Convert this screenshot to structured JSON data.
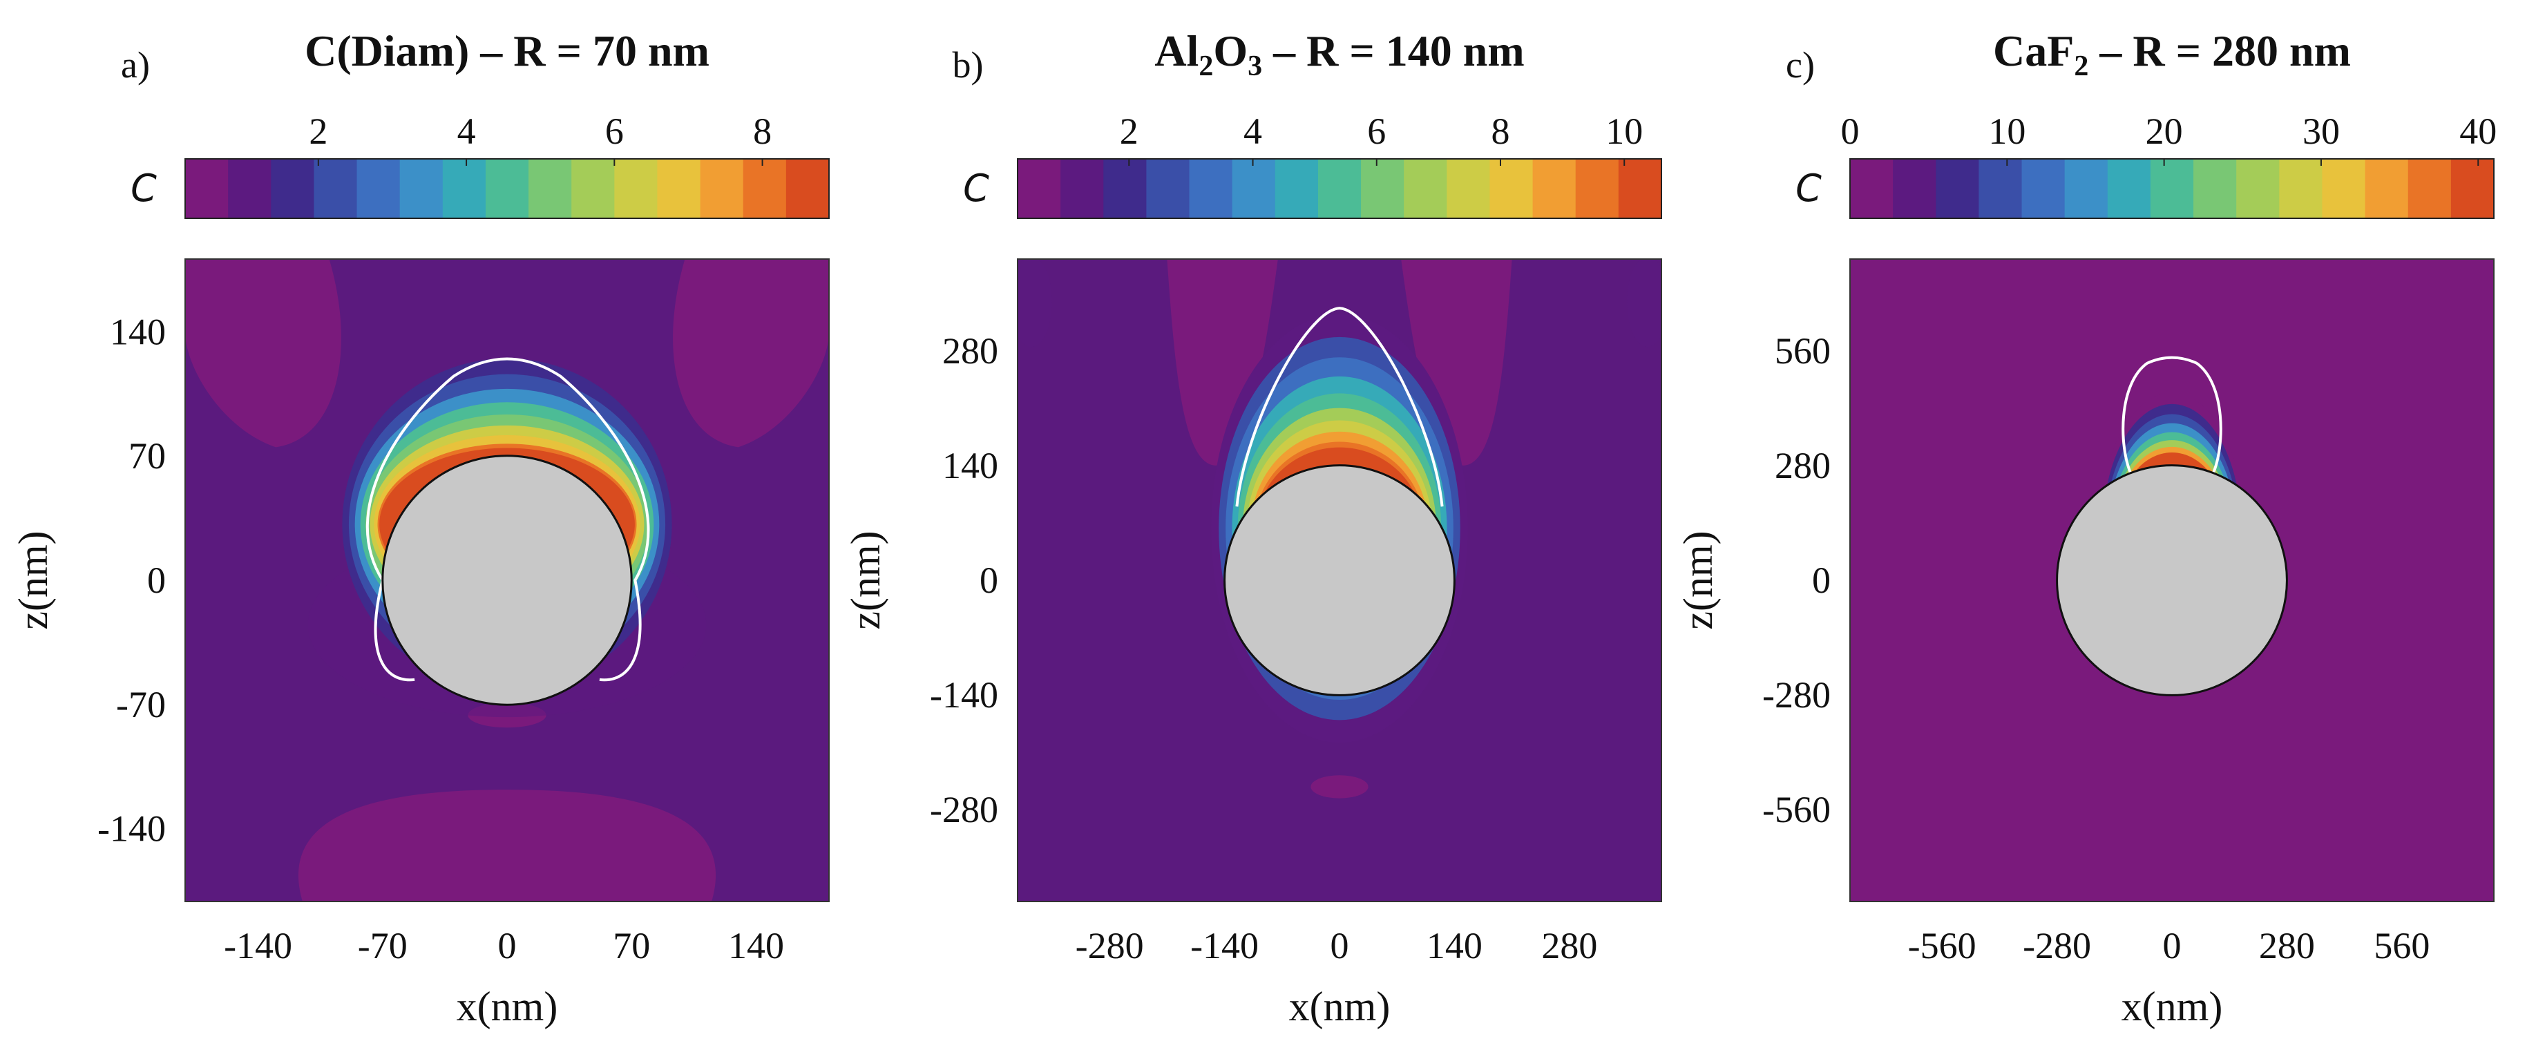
{
  "chart_data": [
    {
      "type": "heatmap",
      "panel_label": "a)",
      "title_parts": [
        "C(Diam) – R = 70 nm"
      ],
      "colorbar_label": "C",
      "colorbar_ticks": [
        "2",
        "4",
        "6",
        "8"
      ],
      "colorbar_range": [
        0.2,
        8.9
      ],
      "radius_nm": 70,
      "xlabel": "x(nm)",
      "ylabel": "z(nm)",
      "xlim": [
        -181,
        181
      ],
      "ylim": [
        -181,
        181
      ],
      "xticks": [
        "-140",
        "-70",
        "0",
        "70",
        "140"
      ],
      "yticks": [
        "140",
        "70",
        "0",
        "-70",
        "-140"
      ],
      "hotspot_peak": 8.9
    },
    {
      "type": "heatmap",
      "panel_label": "b)",
      "title_parts": [
        "Al",
        "2",
        "O",
        "3",
        " – R = 140 nm"
      ],
      "colorbar_label": "C",
      "colorbar_ticks": [
        "2",
        "4",
        "6",
        "8",
        "10"
      ],
      "colorbar_range": [
        0.2,
        10.6
      ],
      "radius_nm": 140,
      "xlabel": "x(nm)",
      "ylabel": "z(nm)",
      "xlim": [
        -392,
        392
      ],
      "ylim": [
        -392,
        392
      ],
      "xticks": [
        "-280",
        "-140",
        "0",
        "140",
        "280"
      ],
      "yticks": [
        "280",
        "140",
        "0",
        "-140",
        "-280"
      ],
      "hotspot_peak": 10.6
    },
    {
      "type": "heatmap",
      "panel_label": "c)",
      "title_parts": [
        "CaF",
        "2",
        " – R = 280 nm"
      ],
      "colorbar_label": "C",
      "colorbar_ticks": [
        "0",
        "10",
        "20",
        "30",
        "40"
      ],
      "colorbar_range": [
        0,
        41
      ],
      "radius_nm": 280,
      "xlabel": "x(nm)",
      "ylabel": "z(nm)",
      "xlim": [
        -784,
        784
      ],
      "ylim": [
        -784,
        784
      ],
      "xticks": [
        "-560",
        "-280",
        "0",
        "280",
        "560"
      ],
      "yticks": [
        "560",
        "280",
        "0",
        "-280",
        "-560"
      ],
      "hotspot_peak": 41
    }
  ],
  "colors": {
    "colormap": [
      "#7a1a7c",
      "#5c1a80",
      "#3f2b8c",
      "#3a4fa8",
      "#3d6fc0",
      "#3c90c8",
      "#36aab8",
      "#4cbc96",
      "#79c774",
      "#a4cc58",
      "#cdcc46",
      "#e8c23c",
      "#f19e33",
      "#e97426",
      "#d94c1f"
    ],
    "background": "#5b1a7e",
    "low_lobe": "#7a1a7c",
    "sphere": "#c8c8c8",
    "contour": "#ffffff"
  }
}
